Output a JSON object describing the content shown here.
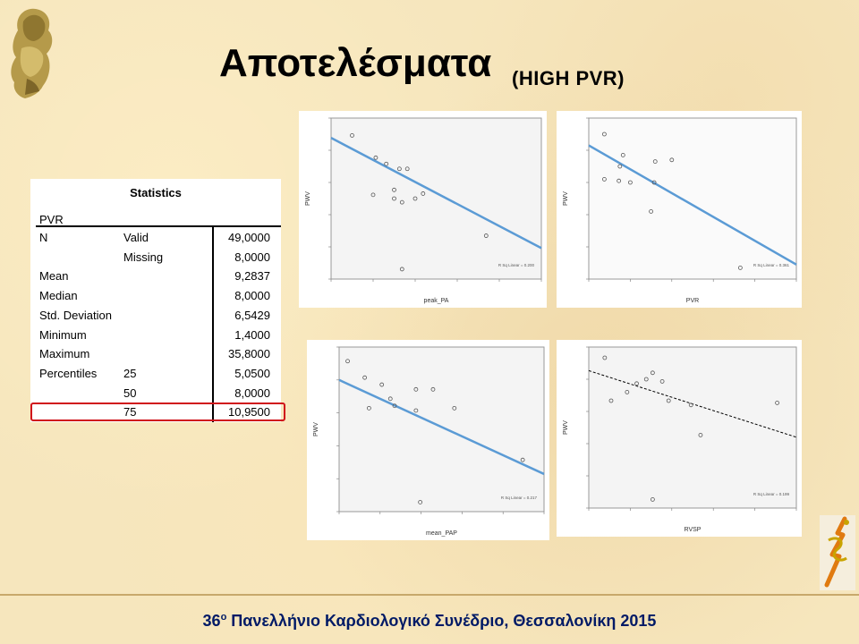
{
  "header": {
    "title": "Αποτελέσματα",
    "subtitle": "(HIGH PVR)"
  },
  "statistics": {
    "title": "Statistics",
    "variable": "PVR",
    "rows": [
      {
        "label": "N",
        "sublabel": "Valid",
        "value": "49,0000"
      },
      {
        "label": "",
        "sublabel": "Missing",
        "value": "8,0000"
      },
      {
        "label": "Mean",
        "sublabel": "",
        "value": "9,2837"
      },
      {
        "label": "Median",
        "sublabel": "",
        "value": "8,0000"
      },
      {
        "label": "Std. Deviation",
        "sublabel": "",
        "value": "6,5429"
      },
      {
        "label": "Minimum",
        "sublabel": "",
        "value": "1,4000"
      },
      {
        "label": "Maximum",
        "sublabel": "",
        "value": "35,8000"
      },
      {
        "label": "Percentiles",
        "sublabel": "25",
        "value": "5,0500"
      },
      {
        "label": "",
        "sublabel": "50",
        "value": "8,0000"
      },
      {
        "label": "",
        "sublabel": "75",
        "value": "10,9500"
      }
    ],
    "highlight_color": "#d0121b"
  },
  "chart_data": [
    {
      "type": "scatter",
      "xlabel": "peak_PA",
      "ylabel": "PWV",
      "annotation": "R Sq Linear = 0.200",
      "xlim": [
        25,
        105
      ],
      "ylim": [
        5,
        18
      ],
      "x": [
        33,
        42,
        46,
        51,
        54,
        60,
        49,
        41,
        49,
        57,
        52,
        84,
        52
      ],
      "y": [
        16.6,
        14.8,
        14.3,
        13.9,
        13.9,
        11.9,
        12.2,
        11.8,
        11.5,
        11.5,
        11.2,
        8.5,
        5.8
      ],
      "fit": [
        [
          25,
          16.4
        ],
        [
          105,
          7.5
        ]
      ],
      "line_color": "#5b9bd5"
    },
    {
      "type": "scatter",
      "xlabel": "PVR",
      "ylabel": "PWV",
      "annotation": "R Sq Linear = 0.361",
      "xlim": [
        0,
        20
      ],
      "ylim": [
        5.5,
        15.5
      ],
      "x": [
        1.5,
        3.3,
        3.0,
        1.5,
        2.9,
        4.0,
        6.3,
        8.0,
        6.4,
        6.0,
        14.6
      ],
      "y": [
        14.5,
        13.2,
        12.5,
        11.7,
        11.6,
        11.5,
        11.5,
        12.9,
        12.8,
        9.7,
        6.2
      ],
      "fit": [
        [
          0,
          13.8
        ],
        [
          20,
          6.4
        ]
      ],
      "line_color": "#5b9bd5"
    },
    {
      "type": "scatter",
      "xlabel": "mean_PAP",
      "ylabel": "PWV",
      "annotation": "R Sq Linear = 0.217",
      "xlim": [
        17,
        65
      ],
      "ylim": [
        6.5,
        13.5
      ],
      "x": [
        19,
        23,
        27,
        29,
        24,
        30,
        35,
        35,
        39,
        36,
        44,
        60
      ],
      "y": [
        12.9,
        12.2,
        11.9,
        11.3,
        10.9,
        11.0,
        11.7,
        10.8,
        11.7,
        6.9,
        10.9,
        8.7
      ],
      "fit": [
        [
          17,
          12.1
        ],
        [
          65,
          8.1
        ]
      ],
      "line_color": "#5b9bd5"
    },
    {
      "type": "scatter",
      "xlabel": "RVSP",
      "ylabel": "PWV",
      "annotation": "R Sq Linear = 0.199",
      "xlim": [
        25,
        90
      ],
      "ylim": [
        6.5,
        14
      ],
      "x": [
        30,
        32,
        37,
        40,
        43,
        45,
        48,
        50,
        57,
        60,
        45,
        84
      ],
      "y": [
        13.5,
        11.5,
        11.9,
        12.3,
        12.5,
        12.8,
        12.4,
        11.5,
        11.3,
        9.9,
        6.9,
        11.4
      ],
      "fit": [
        [
          25,
          12.9
        ],
        [
          90,
          9.8
        ]
      ],
      "line_color": "#000000"
    }
  ],
  "footer": {
    "ordinal": "36",
    "ordinal_suffix": "ο",
    "text": " Πανελλήνιο Καρδιολογικό Συνέδριο, Θεσσαλονίκη 2015"
  },
  "icons": {
    "left_logo": "athena-head-icon",
    "right_logo": "caduceus-icon"
  }
}
